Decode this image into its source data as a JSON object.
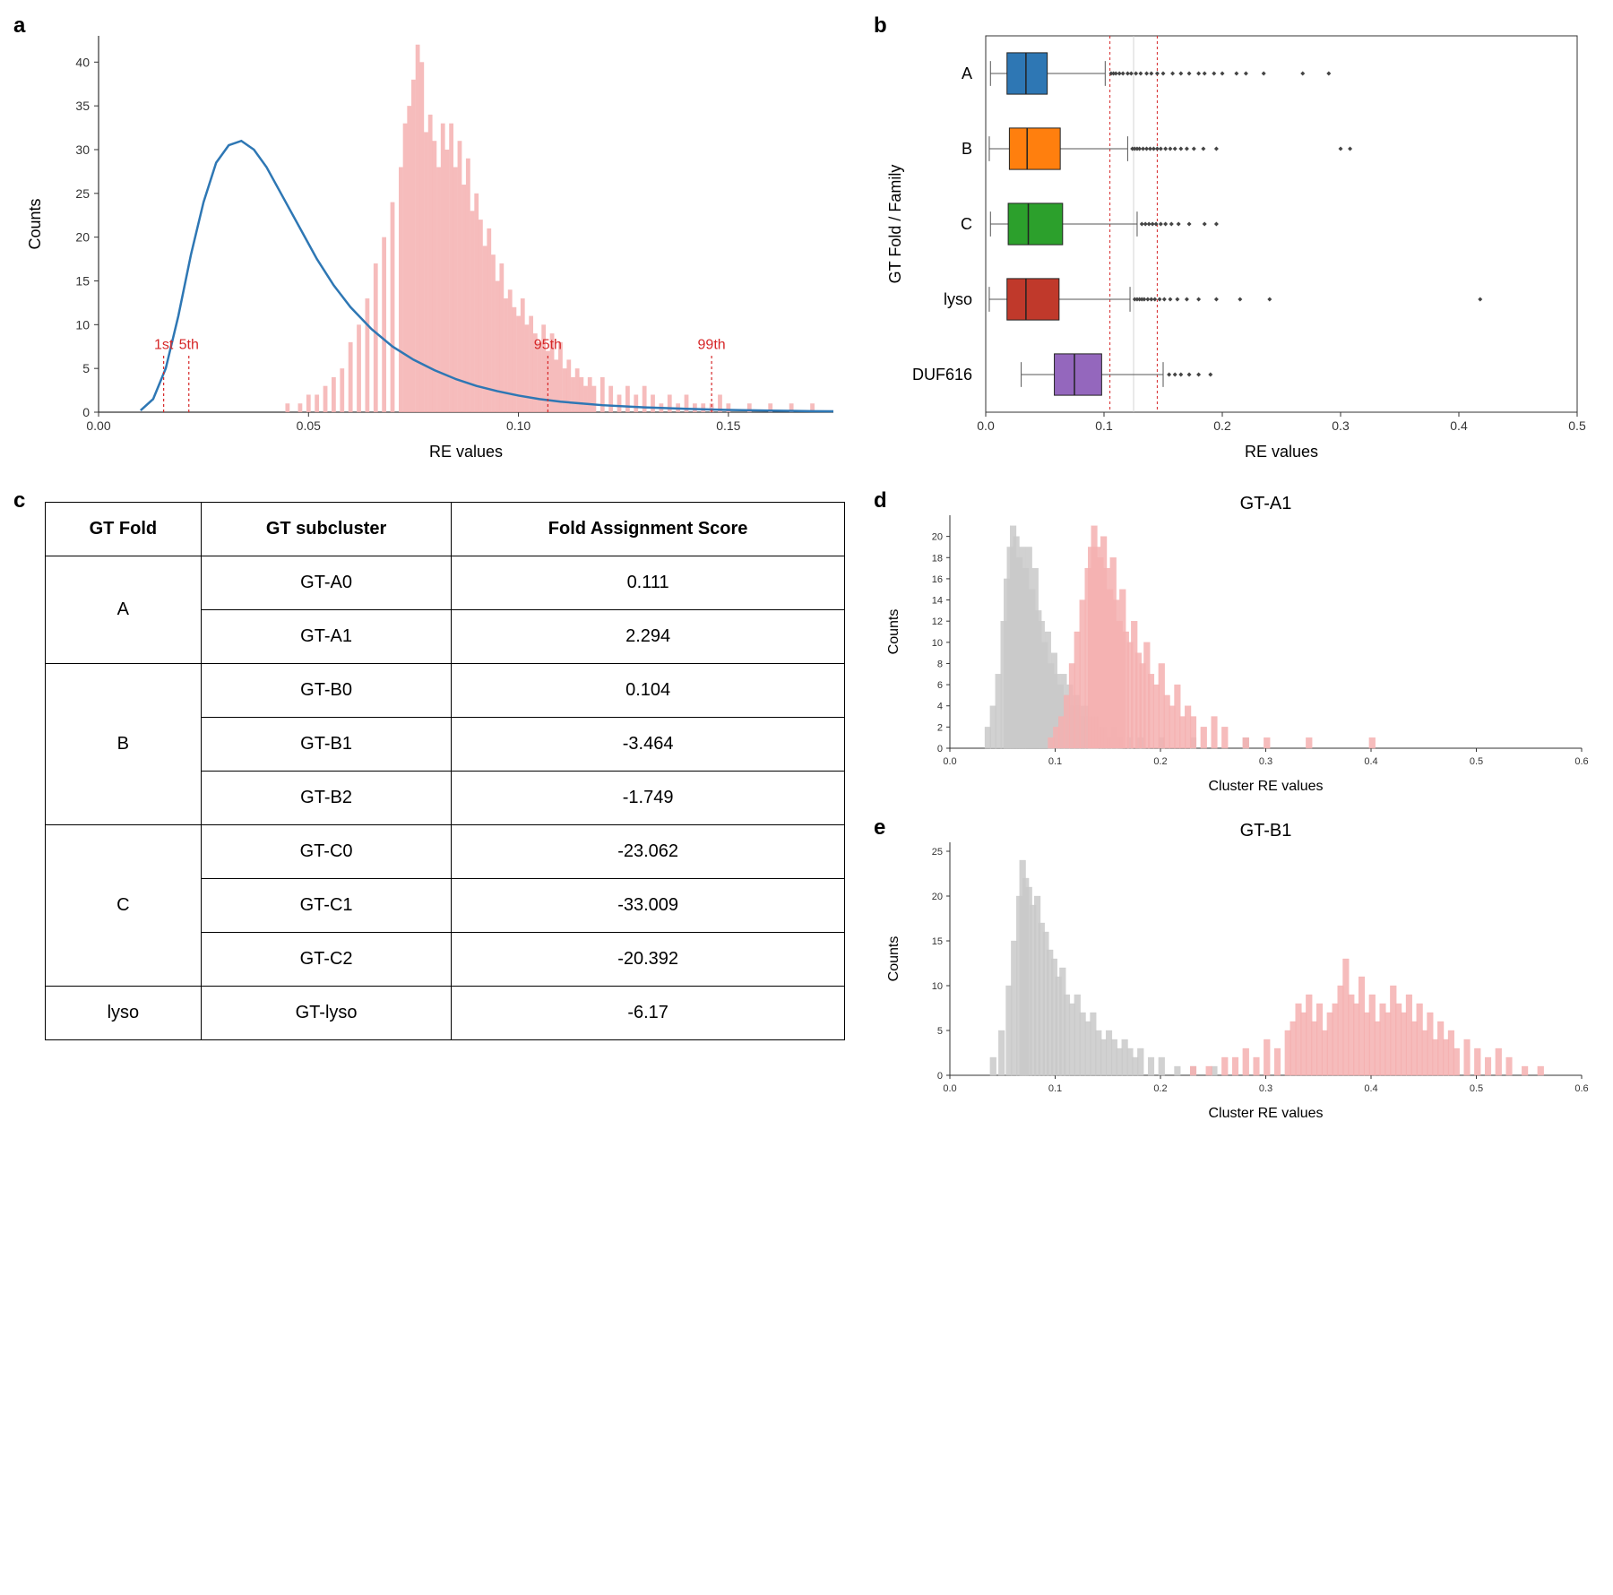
{
  "panel_a": {
    "label": "a",
    "xlabel": "RE values",
    "ylabel": "Counts",
    "xlim": [
      0.0,
      0.175
    ],
    "ylim": [
      0,
      43
    ],
    "xticks": [
      0.0,
      0.05,
      0.1,
      0.15
    ],
    "yticks": [
      0,
      5,
      10,
      15,
      20,
      25,
      30,
      35,
      40
    ],
    "hist": {
      "color": "#f5b0b0",
      "opacity": 0.85,
      "bins": 90,
      "values": [
        [
          0.045,
          1
        ],
        [
          0.048,
          1
        ],
        [
          0.05,
          2
        ],
        [
          0.052,
          2
        ],
        [
          0.054,
          3
        ],
        [
          0.056,
          4
        ],
        [
          0.058,
          5
        ],
        [
          0.06,
          8
        ],
        [
          0.062,
          10
        ],
        [
          0.064,
          13
        ],
        [
          0.066,
          17
        ],
        [
          0.068,
          20
        ],
        [
          0.07,
          24
        ],
        [
          0.072,
          28
        ],
        [
          0.073,
          33
        ],
        [
          0.074,
          35
        ],
        [
          0.075,
          38
        ],
        [
          0.076,
          42
        ],
        [
          0.077,
          40
        ],
        [
          0.078,
          32
        ],
        [
          0.079,
          34
        ],
        [
          0.08,
          31
        ],
        [
          0.081,
          28
        ],
        [
          0.082,
          33
        ],
        [
          0.083,
          30
        ],
        [
          0.084,
          33
        ],
        [
          0.085,
          28
        ],
        [
          0.086,
          31
        ],
        [
          0.087,
          26
        ],
        [
          0.088,
          29
        ],
        [
          0.089,
          23
        ],
        [
          0.09,
          25
        ],
        [
          0.091,
          22
        ],
        [
          0.092,
          19
        ],
        [
          0.093,
          21
        ],
        [
          0.094,
          18
        ],
        [
          0.095,
          15
        ],
        [
          0.096,
          17
        ],
        [
          0.097,
          13
        ],
        [
          0.098,
          14
        ],
        [
          0.099,
          12
        ],
        [
          0.1,
          11
        ],
        [
          0.101,
          13
        ],
        [
          0.102,
          10
        ],
        [
          0.103,
          11
        ],
        [
          0.104,
          9
        ],
        [
          0.105,
          8
        ],
        [
          0.106,
          10
        ],
        [
          0.107,
          7
        ],
        [
          0.108,
          9
        ],
        [
          0.109,
          6
        ],
        [
          0.11,
          8
        ],
        [
          0.111,
          5
        ],
        [
          0.112,
          6
        ],
        [
          0.113,
          4
        ],
        [
          0.114,
          5
        ],
        [
          0.115,
          4
        ],
        [
          0.116,
          3
        ],
        [
          0.117,
          4
        ],
        [
          0.118,
          3
        ],
        [
          0.12,
          4
        ],
        [
          0.122,
          3
        ],
        [
          0.124,
          2
        ],
        [
          0.126,
          3
        ],
        [
          0.128,
          2
        ],
        [
          0.13,
          3
        ],
        [
          0.132,
          2
        ],
        [
          0.134,
          1
        ],
        [
          0.136,
          2
        ],
        [
          0.138,
          1
        ],
        [
          0.14,
          2
        ],
        [
          0.142,
          1
        ],
        [
          0.144,
          1
        ],
        [
          0.146,
          1
        ],
        [
          0.148,
          2
        ],
        [
          0.15,
          1
        ],
        [
          0.155,
          1
        ],
        [
          0.16,
          1
        ],
        [
          0.165,
          1
        ],
        [
          0.17,
          1
        ]
      ]
    },
    "curve": {
      "color": "#2e77b4",
      "width": 2.5,
      "points": [
        [
          0.01,
          0.2
        ],
        [
          0.013,
          1.5
        ],
        [
          0.016,
          5
        ],
        [
          0.019,
          11
        ],
        [
          0.022,
          18
        ],
        [
          0.025,
          24
        ],
        [
          0.028,
          28.5
        ],
        [
          0.031,
          30.5
        ],
        [
          0.034,
          31
        ],
        [
          0.037,
          30
        ],
        [
          0.04,
          28
        ],
        [
          0.044,
          24.5
        ],
        [
          0.048,
          21
        ],
        [
          0.052,
          17.5
        ],
        [
          0.056,
          14.5
        ],
        [
          0.06,
          12
        ],
        [
          0.065,
          9.5
        ],
        [
          0.07,
          7.5
        ],
        [
          0.075,
          6
        ],
        [
          0.08,
          4.8
        ],
        [
          0.085,
          3.8
        ],
        [
          0.09,
          3
        ],
        [
          0.095,
          2.4
        ],
        [
          0.1,
          1.9
        ],
        [
          0.105,
          1.5
        ],
        [
          0.11,
          1.2
        ],
        [
          0.115,
          1.0
        ],
        [
          0.12,
          0.8
        ],
        [
          0.13,
          0.55
        ],
        [
          0.14,
          0.38
        ],
        [
          0.15,
          0.25
        ],
        [
          0.16,
          0.18
        ],
        [
          0.17,
          0.12
        ],
        [
          0.175,
          0.1
        ]
      ]
    },
    "percentiles": [
      {
        "label": "1st",
        "x": 0.0155
      },
      {
        "label": "5th",
        "x": 0.0215
      },
      {
        "label": "95th",
        "x": 0.107
      },
      {
        "label": "99th",
        "x": 0.146
      }
    ]
  },
  "panel_b": {
    "label": "b",
    "xlabel": "RE values",
    "ylabel": "GT Fold / Family",
    "xlim": [
      0.0,
      0.5
    ],
    "xticks": [
      0.0,
      0.1,
      0.2,
      0.3,
      0.4,
      0.5
    ],
    "categories": [
      "A",
      "B",
      "C",
      "lyso",
      "DUF616"
    ],
    "vlines": [
      0.105,
      0.145
    ],
    "vline_color": "#d62728",
    "boxes": [
      {
        "label": "A",
        "color": "#2e77b4",
        "q1": 0.018,
        "med": 0.034,
        "q3": 0.052,
        "wlo": 0.004,
        "whi": 0.101,
        "outliers": [
          0.106,
          0.108,
          0.11,
          0.113,
          0.116,
          0.12,
          0.123,
          0.127,
          0.131,
          0.136,
          0.14,
          0.145,
          0.15,
          0.158,
          0.165,
          0.172,
          0.18,
          0.185,
          0.193,
          0.2,
          0.212,
          0.22,
          0.235,
          0.268,
          0.29
        ]
      },
      {
        "label": "B",
        "color": "#ff7f0e",
        "q1": 0.02,
        "med": 0.035,
        "q3": 0.063,
        "wlo": 0.003,
        "whi": 0.12,
        "outliers": [
          0.124,
          0.126,
          0.128,
          0.13,
          0.133,
          0.136,
          0.139,
          0.142,
          0.145,
          0.148,
          0.152,
          0.156,
          0.16,
          0.165,
          0.17,
          0.176,
          0.184,
          0.195,
          0.3,
          0.308
        ]
      },
      {
        "label": "C",
        "color": "#2ca02c",
        "q1": 0.019,
        "med": 0.036,
        "q3": 0.065,
        "wlo": 0.004,
        "whi": 0.128,
        "outliers": [
          0.132,
          0.135,
          0.138,
          0.141,
          0.144,
          0.148,
          0.152,
          0.157,
          0.163,
          0.172,
          0.185,
          0.195
        ]
      },
      {
        "label": "lyso",
        "color": "#c0392b",
        "q1": 0.018,
        "med": 0.034,
        "q3": 0.062,
        "wlo": 0.003,
        "whi": 0.122,
        "outliers": [
          0.126,
          0.128,
          0.13,
          0.132,
          0.134,
          0.137,
          0.14,
          0.143,
          0.147,
          0.151,
          0.156,
          0.162,
          0.17,
          0.18,
          0.195,
          0.215,
          0.24,
          0.418
        ]
      },
      {
        "label": "DUF616",
        "color": "#9467bd",
        "q1": 0.058,
        "med": 0.075,
        "q3": 0.098,
        "wlo": 0.03,
        "whi": 0.15,
        "outliers": [
          0.155,
          0.16,
          0.165,
          0.172,
          0.18,
          0.19
        ]
      }
    ]
  },
  "panel_c": {
    "label": "c",
    "headers": [
      "GT Fold",
      "GT subcluster",
      "Fold Assignment Score"
    ],
    "rows": [
      {
        "fold": "A",
        "fold_span": 2,
        "sub": "GT-A0",
        "score": "0.111"
      },
      {
        "fold": "",
        "sub": "GT-A1",
        "score": "2.294"
      },
      {
        "fold": "B",
        "fold_span": 3,
        "sub": "GT-B0",
        "score": "0.104"
      },
      {
        "fold": "",
        "sub": "GT-B1",
        "score": "-3.464"
      },
      {
        "fold": "",
        "sub": "GT-B2",
        "score": "-1.749"
      },
      {
        "fold": "C",
        "fold_span": 3,
        "sub": "GT-C0",
        "score": "-23.062"
      },
      {
        "fold": "",
        "sub": "GT-C1",
        "score": "-33.009"
      },
      {
        "fold": "",
        "sub": "GT-C2",
        "score": "-20.392"
      },
      {
        "fold": "lyso",
        "fold_span": 1,
        "sub": "GT-lyso",
        "score": "-6.17"
      }
    ]
  },
  "panel_d": {
    "label": "d",
    "title": "GT-A1",
    "xlabel": "Cluster RE values",
    "ylabel": "Counts",
    "xlim": [
      0.0,
      0.6
    ],
    "ylim": [
      0,
      22
    ],
    "xticks": [
      0.0,
      0.1,
      0.2,
      0.3,
      0.4,
      0.5,
      0.6
    ],
    "yticks": [
      0,
      2,
      4,
      6,
      8,
      10,
      12,
      14,
      16,
      18,
      20
    ],
    "hist_gray": {
      "color": "#c9c9c9",
      "values": [
        [
          0.035,
          2
        ],
        [
          0.04,
          4
        ],
        [
          0.045,
          7
        ],
        [
          0.05,
          12
        ],
        [
          0.053,
          16
        ],
        [
          0.056,
          19
        ],
        [
          0.059,
          21
        ],
        [
          0.062,
          20
        ],
        [
          0.065,
          18
        ],
        [
          0.068,
          19
        ],
        [
          0.071,
          17
        ],
        [
          0.074,
          19
        ],
        [
          0.077,
          15
        ],
        [
          0.08,
          17
        ],
        [
          0.083,
          13
        ],
        [
          0.086,
          12
        ],
        [
          0.089,
          10
        ],
        [
          0.092,
          11
        ],
        [
          0.095,
          8
        ],
        [
          0.098,
          9
        ],
        [
          0.101,
          7
        ],
        [
          0.104,
          6
        ],
        [
          0.107,
          7
        ],
        [
          0.11,
          5
        ],
        [
          0.113,
          6
        ],
        [
          0.116,
          4
        ],
        [
          0.119,
          5
        ],
        [
          0.122,
          4
        ],
        [
          0.125,
          3
        ],
        [
          0.128,
          4
        ],
        [
          0.131,
          3
        ],
        [
          0.134,
          2
        ],
        [
          0.137,
          3
        ],
        [
          0.14,
          2
        ],
        [
          0.145,
          2
        ],
        [
          0.15,
          1
        ],
        [
          0.155,
          2
        ],
        [
          0.16,
          1
        ],
        [
          0.17,
          1
        ],
        [
          0.18,
          1
        ],
        [
          0.2,
          1
        ],
        [
          0.23,
          1
        ],
        [
          0.28,
          1
        ]
      ]
    },
    "hist_pink": {
      "color": "#f5b0b0",
      "values": [
        [
          0.095,
          1
        ],
        [
          0.1,
          2
        ],
        [
          0.105,
          3
        ],
        [
          0.11,
          5
        ],
        [
          0.115,
          8
        ],
        [
          0.12,
          11
        ],
        [
          0.125,
          14
        ],
        [
          0.13,
          17
        ],
        [
          0.133,
          19
        ],
        [
          0.136,
          21
        ],
        [
          0.139,
          19
        ],
        [
          0.142,
          18
        ],
        [
          0.145,
          20
        ],
        [
          0.148,
          17
        ],
        [
          0.151,
          15
        ],
        [
          0.154,
          18
        ],
        [
          0.157,
          14
        ],
        [
          0.16,
          12
        ],
        [
          0.163,
          15
        ],
        [
          0.166,
          11
        ],
        [
          0.17,
          10
        ],
        [
          0.174,
          12
        ],
        [
          0.178,
          9
        ],
        [
          0.182,
          8
        ],
        [
          0.186,
          10
        ],
        [
          0.19,
          7
        ],
        [
          0.195,
          6
        ],
        [
          0.2,
          8
        ],
        [
          0.205,
          5
        ],
        [
          0.21,
          4
        ],
        [
          0.215,
          6
        ],
        [
          0.22,
          3
        ],
        [
          0.225,
          4
        ],
        [
          0.23,
          3
        ],
        [
          0.24,
          2
        ],
        [
          0.25,
          3
        ],
        [
          0.26,
          2
        ],
        [
          0.28,
          1
        ],
        [
          0.3,
          1
        ],
        [
          0.34,
          1
        ],
        [
          0.4,
          1
        ]
      ]
    }
  },
  "panel_e": {
    "label": "e",
    "title": "GT-B1",
    "xlabel": "Cluster RE values",
    "ylabel": "Counts",
    "xlim": [
      0.0,
      0.6
    ],
    "ylim": [
      0,
      26
    ],
    "xticks": [
      0.0,
      0.1,
      0.2,
      0.3,
      0.4,
      0.5,
      0.6
    ],
    "yticks": [
      0,
      5,
      10,
      15,
      20,
      25
    ],
    "hist_gray": {
      "color": "#c9c9c9",
      "values": [
        [
          0.04,
          2
        ],
        [
          0.048,
          5
        ],
        [
          0.055,
          10
        ],
        [
          0.06,
          15
        ],
        [
          0.065,
          20
        ],
        [
          0.068,
          24
        ],
        [
          0.071,
          22
        ],
        [
          0.074,
          21
        ],
        [
          0.078,
          19
        ],
        [
          0.082,
          20
        ],
        [
          0.086,
          17
        ],
        [
          0.09,
          16
        ],
        [
          0.094,
          14
        ],
        [
          0.098,
          13
        ],
        [
          0.102,
          11
        ],
        [
          0.106,
          12
        ],
        [
          0.11,
          9
        ],
        [
          0.115,
          8
        ],
        [
          0.12,
          9
        ],
        [
          0.125,
          7
        ],
        [
          0.13,
          6
        ],
        [
          0.135,
          7
        ],
        [
          0.14,
          5
        ],
        [
          0.145,
          4
        ],
        [
          0.15,
          5
        ],
        [
          0.155,
          4
        ],
        [
          0.16,
          3
        ],
        [
          0.165,
          4
        ],
        [
          0.17,
          3
        ],
        [
          0.175,
          2
        ],
        [
          0.18,
          3
        ],
        [
          0.19,
          2
        ],
        [
          0.2,
          2
        ],
        [
          0.215,
          1
        ],
        [
          0.23,
          1
        ],
        [
          0.25,
          1
        ]
      ]
    },
    "hist_pink": {
      "color": "#f5b0b0",
      "values": [
        [
          0.23,
          1
        ],
        [
          0.245,
          1
        ],
        [
          0.26,
          2
        ],
        [
          0.27,
          2
        ],
        [
          0.28,
          3
        ],
        [
          0.29,
          2
        ],
        [
          0.3,
          4
        ],
        [
          0.31,
          3
        ],
        [
          0.32,
          5
        ],
        [
          0.325,
          6
        ],
        [
          0.33,
          8
        ],
        [
          0.335,
          7
        ],
        [
          0.34,
          9
        ],
        [
          0.345,
          6
        ],
        [
          0.35,
          8
        ],
        [
          0.355,
          5
        ],
        [
          0.36,
          7
        ],
        [
          0.365,
          8
        ],
        [
          0.37,
          10
        ],
        [
          0.375,
          13
        ],
        [
          0.38,
          9
        ],
        [
          0.385,
          8
        ],
        [
          0.39,
          11
        ],
        [
          0.395,
          7
        ],
        [
          0.4,
          9
        ],
        [
          0.405,
          6
        ],
        [
          0.41,
          8
        ],
        [
          0.415,
          7
        ],
        [
          0.42,
          10
        ],
        [
          0.425,
          8
        ],
        [
          0.43,
          7
        ],
        [
          0.435,
          9
        ],
        [
          0.44,
          6
        ],
        [
          0.445,
          8
        ],
        [
          0.45,
          5
        ],
        [
          0.455,
          7
        ],
        [
          0.46,
          4
        ],
        [
          0.465,
          6
        ],
        [
          0.47,
          4
        ],
        [
          0.475,
          5
        ],
        [
          0.48,
          3
        ],
        [
          0.49,
          4
        ],
        [
          0.5,
          3
        ],
        [
          0.51,
          2
        ],
        [
          0.52,
          3
        ],
        [
          0.53,
          2
        ],
        [
          0.545,
          1
        ],
        [
          0.56,
          1
        ]
      ]
    }
  },
  "colors": {
    "axis": "#333333",
    "grid": "#dddddd"
  }
}
